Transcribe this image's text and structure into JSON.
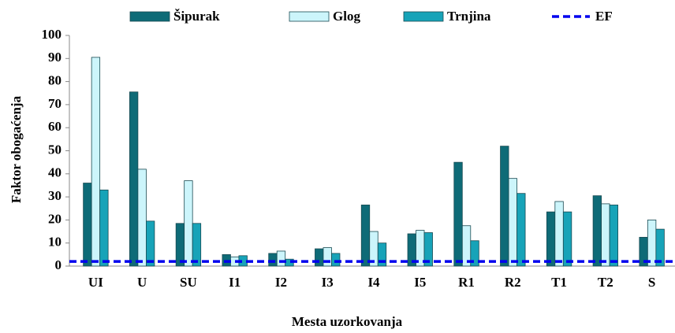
{
  "chart_data": {
    "type": "bar",
    "categories": [
      "UI",
      "U",
      "SU",
      "I1",
      "I2",
      "I3",
      "I4",
      "I5",
      "R1",
      "R2",
      "T1",
      "T2",
      "S"
    ],
    "series": [
      {
        "name": "Šipurak",
        "color": "#0e6b77",
        "values": [
          36,
          75.5,
          18.5,
          5,
          5.5,
          7.5,
          26.5,
          14,
          45,
          52,
          23.5,
          30.5,
          12.5
        ]
      },
      {
        "name": "Glog",
        "color": "#ccf5fb",
        "values": [
          90.5,
          42,
          37,
          4,
          6.5,
          8,
          15,
          15.5,
          17.5,
          38,
          28,
          27,
          20
        ]
      },
      {
        "name": "Trnjina",
        "color": "#17a3b8",
        "values": [
          33,
          19.5,
          18.5,
          4.5,
          3,
          5.5,
          10,
          14.5,
          11,
          31.5,
          23.5,
          26.5,
          16
        ]
      }
    ],
    "reference_line": {
      "name": "EF",
      "value": 2,
      "color": "#0000ee"
    },
    "x_label": "Mesta uzorkovanja",
    "y_label": "Faktor obogaćenja",
    "ylim": [
      0,
      100
    ],
    "yticks": [
      0,
      10,
      20,
      30,
      40,
      50,
      60,
      70,
      80,
      90,
      100
    ],
    "grid": false,
    "legend": "top"
  }
}
